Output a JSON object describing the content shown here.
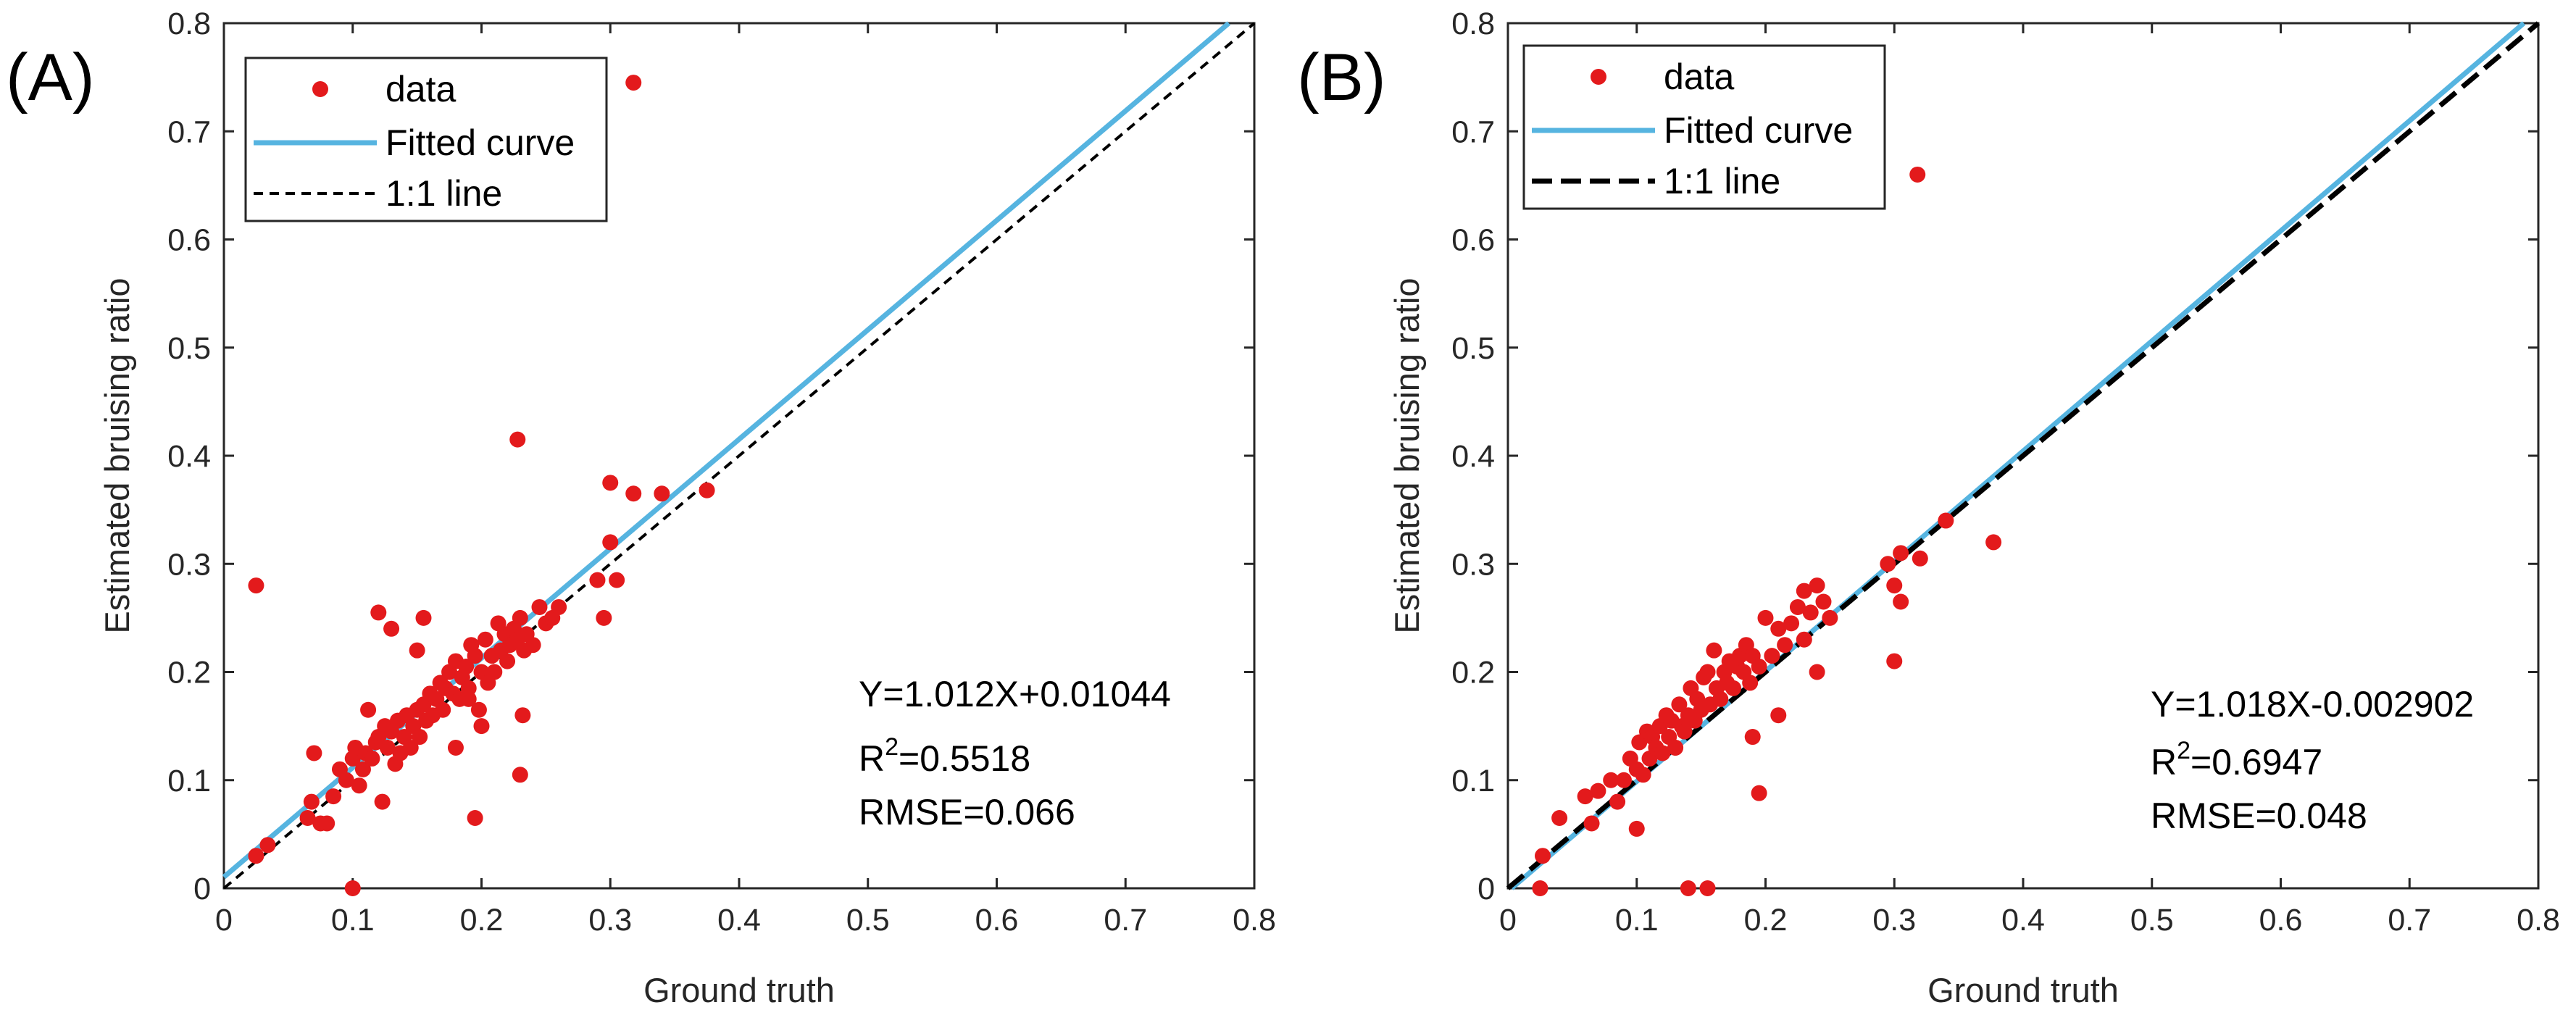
{
  "chart_data": [
    {
      "type": "scatter",
      "panel_label": "(A)",
      "xlabel": "Ground truth",
      "ylabel": "Estimated bruising ratio",
      "xlim": [
        0,
        0.8
      ],
      "ylim": [
        0,
        0.8
      ],
      "xticks": [
        "0",
        "0.1",
        "0.2",
        "0.3",
        "0.4",
        "0.5",
        "0.6",
        "0.7",
        "0.8"
      ],
      "yticks": [
        "0",
        "0.1",
        "0.2",
        "0.3",
        "0.4",
        "0.5",
        "0.6",
        "0.7",
        "0.8"
      ],
      "legend": {
        "position": "top-left",
        "data": "data",
        "fitted": "Fitted curve",
        "identity": "1:1 line"
      },
      "fit": {
        "slope": 1.012,
        "intercept": 0.01044
      },
      "annotations": {
        "equation": "Y=1.012X+0.01044",
        "r2_label": "R",
        "r2_sup": "2",
        "r2_value": "=0.5518",
        "rmse": "RMSE=0.066"
      },
      "series": [
        {
          "name": "data",
          "x": [
            0.025,
            0.034,
            0.065,
            0.07,
            0.075,
            0.068,
            0.08,
            0.085,
            0.09,
            0.095,
            0.1,
            0.102,
            0.105,
            0.108,
            0.11,
            0.112,
            0.115,
            0.118,
            0.12,
            0.123,
            0.125,
            0.127,
            0.13,
            0.133,
            0.135,
            0.137,
            0.14,
            0.142,
            0.145,
            0.147,
            0.15,
            0.152,
            0.155,
            0.157,
            0.16,
            0.162,
            0.165,
            0.168,
            0.17,
            0.172,
            0.175,
            0.178,
            0.18,
            0.183,
            0.185,
            0.188,
            0.19,
            0.192,
            0.195,
            0.198,
            0.2,
            0.203,
            0.205,
            0.208,
            0.21,
            0.213,
            0.215,
            0.218,
            0.22,
            0.222,
            0.225,
            0.228,
            0.23,
            0.233,
            0.235,
            0.24,
            0.245,
            0.25,
            0.255,
            0.29,
            0.295,
            0.3,
            0.305,
            0.26,
            0.12,
            0.13,
            0.155,
            0.15,
            0.23,
            0.232,
            0.2,
            0.228,
            0.3,
            0.318,
            0.34,
            0.375,
            0.318,
            0.1,
            0.025,
            0.195,
            0.18,
            0.19
          ],
          "y": [
            0.03,
            0.04,
            0.065,
            0.125,
            0.06,
            0.08,
            0.06,
            0.085,
            0.11,
            0.1,
            0.12,
            0.13,
            0.095,
            0.11,
            0.125,
            0.165,
            0.12,
            0.135,
            0.14,
            0.08,
            0.15,
            0.13,
            0.145,
            0.115,
            0.155,
            0.125,
            0.14,
            0.16,
            0.13,
            0.15,
            0.165,
            0.14,
            0.17,
            0.155,
            0.18,
            0.16,
            0.175,
            0.19,
            0.165,
            0.185,
            0.2,
            0.18,
            0.21,
            0.175,
            0.195,
            0.205,
            0.185,
            0.225,
            0.215,
            0.165,
            0.2,
            0.23,
            0.19,
            0.215,
            0.2,
            0.245,
            0.22,
            0.235,
            0.21,
            0.225,
            0.24,
            0.23,
            0.25,
            0.22,
            0.235,
            0.225,
            0.26,
            0.245,
            0.25,
            0.285,
            0.25,
            0.32,
            0.285,
            0.26,
            0.255,
            0.24,
            0.25,
            0.22,
            0.105,
            0.16,
            0.15,
            0.415,
            0.375,
            0.365,
            0.365,
            0.368,
            0.745,
            0.0,
            0.28,
            0.065,
            0.13,
            0.175
          ]
        }
      ]
    },
    {
      "type": "scatter",
      "panel_label": "(B)",
      "xlabel": "Ground truth",
      "ylabel": "Estimated bruising ratio",
      "xlim": [
        0,
        0.8
      ],
      "ylim": [
        0,
        0.8
      ],
      "xticks": [
        "0",
        "0.1",
        "0.2",
        "0.3",
        "0.4",
        "0.5",
        "0.6",
        "0.7",
        "0.8"
      ],
      "yticks": [
        "0",
        "0.1",
        "0.2",
        "0.3",
        "0.4",
        "0.5",
        "0.6",
        "0.7",
        "0.8"
      ],
      "legend": {
        "position": "top-left",
        "data": "data",
        "fitted": "Fitted curve",
        "identity": "1:1 line"
      },
      "fit": {
        "slope": 1.018,
        "intercept": -0.002902
      },
      "annotations": {
        "equation": "Y=1.018X-0.002902",
        "r2_label": "R",
        "r2_sup": "2",
        "r2_value": "=0.6947",
        "rmse": "RMSE=0.048"
      },
      "series": [
        {
          "name": "data",
          "x": [
            0.025,
            0.027,
            0.04,
            0.06,
            0.065,
            0.07,
            0.08,
            0.085,
            0.09,
            0.095,
            0.1,
            0.102,
            0.105,
            0.108,
            0.11,
            0.112,
            0.115,
            0.118,
            0.12,
            0.123,
            0.125,
            0.127,
            0.13,
            0.133,
            0.135,
            0.137,
            0.14,
            0.142,
            0.145,
            0.147,
            0.15,
            0.152,
            0.155,
            0.157,
            0.16,
            0.162,
            0.165,
            0.168,
            0.17,
            0.172,
            0.175,
            0.178,
            0.18,
            0.183,
            0.185,
            0.188,
            0.19,
            0.195,
            0.2,
            0.205,
            0.21,
            0.215,
            0.22,
            0.225,
            0.23,
            0.235,
            0.24,
            0.245,
            0.25,
            0.295,
            0.3,
            0.305,
            0.32,
            0.34,
            0.377,
            0.3,
            0.305,
            0.1,
            0.195,
            0.318,
            0.14,
            0.155,
            0.13,
            0.19,
            0.21,
            0.24,
            0.23
          ],
          "y": [
            0.0,
            0.03,
            0.065,
            0.085,
            0.06,
            0.09,
            0.1,
            0.08,
            0.1,
            0.12,
            0.11,
            0.135,
            0.105,
            0.145,
            0.12,
            0.14,
            0.13,
            0.15,
            0.125,
            0.16,
            0.14,
            0.155,
            0.13,
            0.17,
            0.15,
            0.145,
            0.16,
            0.185,
            0.155,
            0.175,
            0.165,
            0.195,
            0.2,
            0.17,
            0.22,
            0.185,
            0.175,
            0.2,
            0.19,
            0.21,
            0.185,
            0.205,
            0.215,
            0.2,
            0.225,
            0.19,
            0.215,
            0.205,
            0.25,
            0.215,
            0.24,
            0.225,
            0.245,
            0.26,
            0.275,
            0.255,
            0.28,
            0.265,
            0.25,
            0.3,
            0.28,
            0.265,
            0.305,
            0.34,
            0.32,
            0.21,
            0.31,
            0.055,
            0.088,
            0.66,
            0.0,
            0.0,
            0.13,
            0.14,
            0.16,
            0.2,
            0.23
          ]
        }
      ]
    }
  ]
}
